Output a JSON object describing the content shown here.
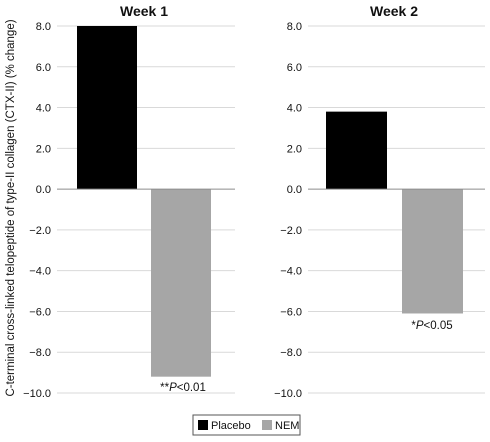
{
  "chart_data": {
    "type": "bar",
    "ylabel": "C-terminal cross-linked telopeptide of type-II collagen (CTX-II) (% change)",
    "ylim": [
      -10,
      8
    ],
    "yticks": [
      "8.0",
      "6.0",
      "4.0",
      "2.0",
      "0.0",
      "−2.0",
      "−4.0",
      "−6.0",
      "−8.0",
      "−10.0"
    ],
    "grid": true,
    "legend": {
      "placement": "bottom-center",
      "entries": [
        "Placebo",
        "NEM"
      ]
    },
    "colors": {
      "Placebo": "#000000",
      "NEM": "#a6a6a6",
      "grid": "#d9d9d9",
      "axis": "#8c8c8c"
    },
    "panels": [
      {
        "title": "Week 1",
        "series": [
          {
            "name": "Placebo",
            "value": 8.0
          },
          {
            "name": "NEM",
            "value": -9.2
          }
        ],
        "annotation": {
          "prefix": "**",
          "text": "P",
          "suffix": "<0.01"
        }
      },
      {
        "title": "Week 2",
        "series": [
          {
            "name": "Placebo",
            "value": 3.8
          },
          {
            "name": "NEM",
            "value": -6.1
          }
        ],
        "annotation": {
          "prefix": "*",
          "text": "P",
          "suffix": "<0.05"
        }
      }
    ]
  }
}
